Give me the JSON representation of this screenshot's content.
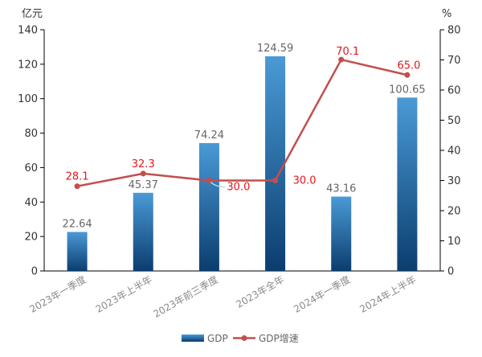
{
  "chart_data": {
    "type": "bar",
    "categories": [
      "2023年一季度",
      "2023年上半年",
      "2023年前三季度",
      "2023年全年",
      "2024年一季度",
      "2024年上半年"
    ],
    "series": [
      {
        "name": "GDP",
        "type": "bar",
        "axis": "left",
        "values": [
          22.64,
          45.37,
          74.24,
          124.59,
          43.16,
          100.65
        ]
      },
      {
        "name": "GDP增速",
        "type": "line",
        "axis": "right",
        "values": [
          28.1,
          32.3,
          30.0,
          30.0,
          70.1,
          65.0
        ]
      }
    ],
    "ylabel_left": "亿元",
    "ylabel_right": "%",
    "ylim_left": [
      0,
      140
    ],
    "ylim_right": [
      0,
      80
    ],
    "yticks_left": [
      "0",
      "20",
      "40",
      "60",
      "80",
      "100",
      "120",
      "140"
    ],
    "yticks_right": [
      "0",
      "10",
      "20",
      "30",
      "40",
      "50",
      "60",
      "70",
      "80"
    ],
    "bar_labels": [
      "22.64",
      "45.37",
      "74.24",
      "124.59",
      "43.16",
      "100.65"
    ],
    "line_labels": [
      "28.1",
      "32.3",
      "30.0",
      "30.0",
      "70.1",
      "65.0"
    ],
    "grid": false,
    "legend_position": "bottom",
    "colors": {
      "bar_top": "#4a9ad6",
      "bar_bottom": "#0b3d6e",
      "line": "#c0504d",
      "line_label": "#e8141a",
      "bar_label": "#666666",
      "axis": "#000000",
      "tick_label": "#333333",
      "category_label": "#888888"
    }
  }
}
